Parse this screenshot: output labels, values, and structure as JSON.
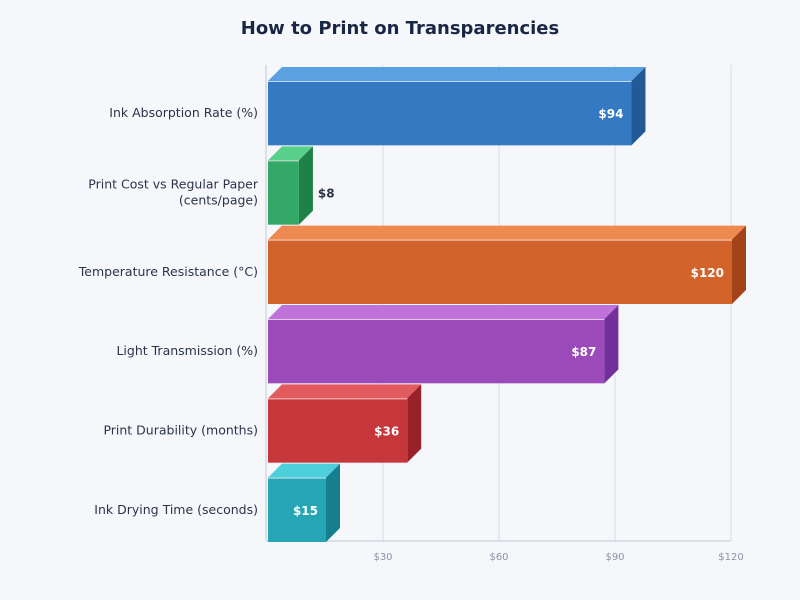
{
  "chart_data": {
    "type": "bar",
    "orientation": "horizontal",
    "style": "3d",
    "title": "How to Print on Transparencies",
    "categories": [
      "Ink Absorption Rate (%)",
      "Print Cost vs Regular Paper (cents/page)",
      "Temperature Resistance (°C)",
      "Light Transmission (%)",
      "Print Durability (months)",
      "Ink Drying Time (seconds)"
    ],
    "values": [
      94,
      8,
      120,
      87,
      36,
      15
    ],
    "value_labels": [
      "$94",
      "$8",
      "$120",
      "$87",
      "$36",
      "$15"
    ],
    "colors": [
      {
        "front": "#3479c1",
        "top": "#5ba0e0",
        "side": "#225a98"
      },
      {
        "front": "#34a866",
        "top": "#58d08b",
        "side": "#1f8145"
      },
      {
        "front": "#d2632b",
        "top": "#ec8a50",
        "side": "#a34418"
      },
      {
        "front": "#9a4bb9",
        "top": "#bf72da",
        "side": "#74309a"
      },
      {
        "front": "#c6373b",
        "top": "#e05a5e",
        "side": "#99222a"
      },
      {
        "front": "#26a6b4",
        "top": "#4dd0dc",
        "side": "#167e8c"
      }
    ],
    "xlim": [
      0,
      120
    ],
    "xticks": [
      30,
      60,
      90,
      120
    ],
    "xtick_labels": [
      "$30",
      "$60",
      "$90",
      "$120"
    ],
    "grid": true
  }
}
